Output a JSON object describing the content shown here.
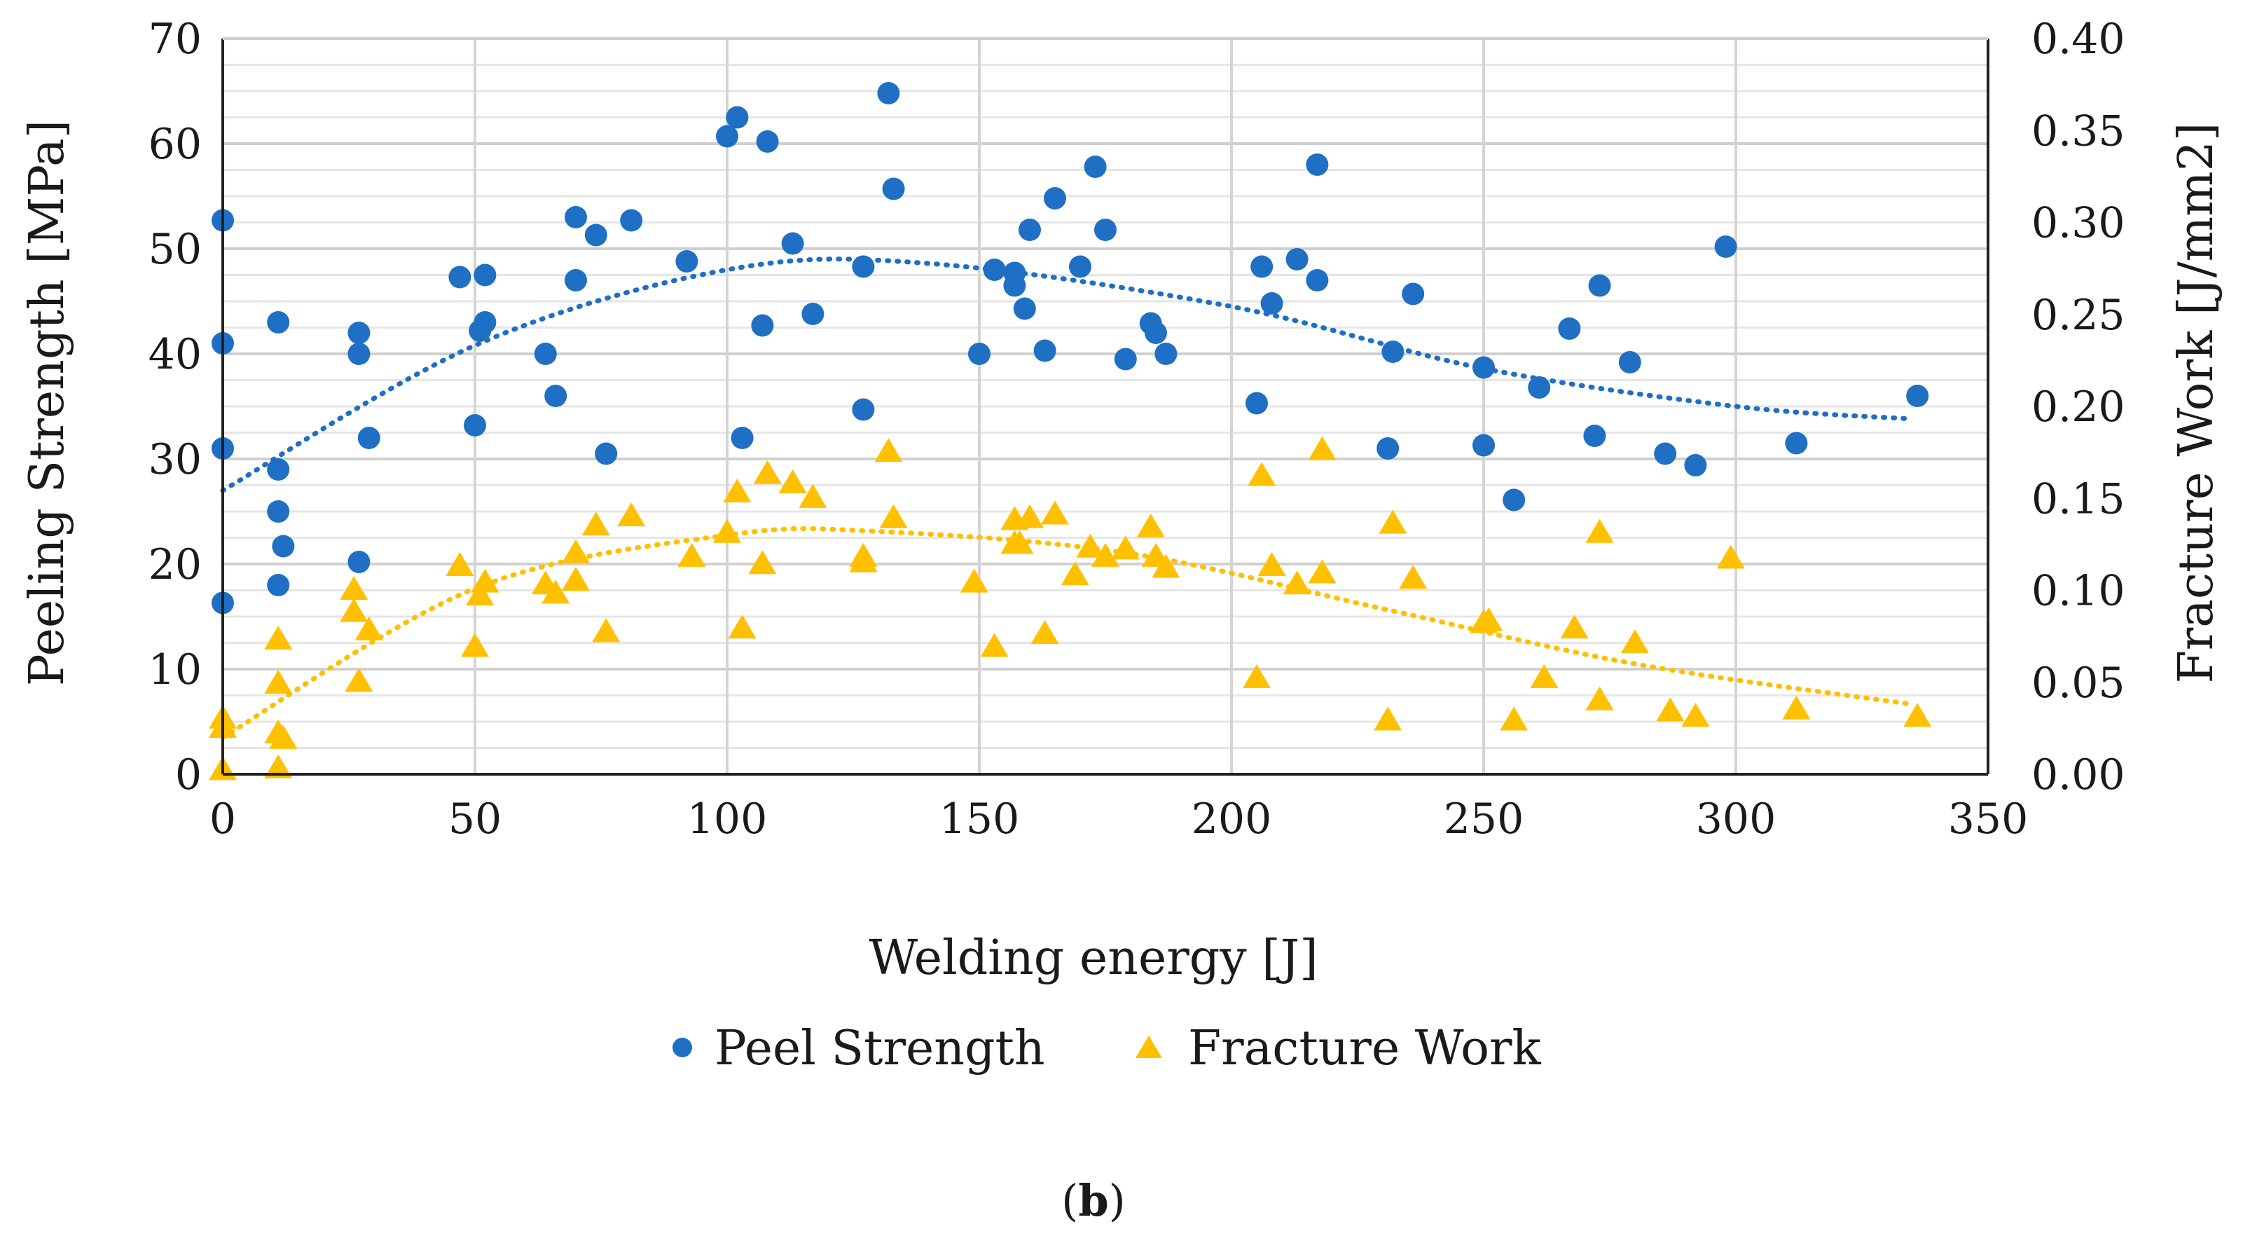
{
  "chart_data": {
    "type": "scatter",
    "xlabel": "Welding energy [J]",
    "ylabel": "Peeling Strength [MPa]",
    "y2label": "Fracture Work [J/mm2]",
    "xlim": [
      0,
      350
    ],
    "ylim": [
      0,
      70
    ],
    "y2lim": [
      0,
      0.4
    ],
    "x_ticks": [
      "0",
      "50",
      "100",
      "150",
      "200",
      "250",
      "300",
      "350"
    ],
    "y_ticks": [
      "0",
      "10",
      "20",
      "30",
      "40",
      "50",
      "60",
      "70"
    ],
    "y2_ticks": [
      "0.00",
      "0.05",
      "0.10",
      "0.15",
      "0.20",
      "0.25",
      "0.30",
      "0.35",
      "0.40"
    ],
    "grid": true,
    "legend_position": "bottom",
    "caption_prefix": "(",
    "caption_bold": "b",
    "caption_suffix": ")",
    "series": [
      {
        "name": "Peel Strength",
        "axis": "left",
        "marker": "circle",
        "color": "#1f6fc5",
        "points": [
          [
            0,
            52.7
          ],
          [
            0,
            41
          ],
          [
            0,
            31
          ],
          [
            0,
            16.3
          ],
          [
            11,
            43
          ],
          [
            11,
            29
          ],
          [
            11,
            25
          ],
          [
            11,
            18
          ],
          [
            12,
            21.7
          ],
          [
            27,
            42
          ],
          [
            27,
            40
          ],
          [
            27,
            20.2
          ],
          [
            29,
            32
          ],
          [
            47,
            47.3
          ],
          [
            50,
            33.2
          ],
          [
            51,
            42.2
          ],
          [
            52,
            47.5
          ],
          [
            52,
            43
          ],
          [
            64,
            40
          ],
          [
            66,
            36
          ],
          [
            70,
            53
          ],
          [
            70,
            47
          ],
          [
            74,
            51.3
          ],
          [
            76,
            30.5
          ],
          [
            81,
            52.7
          ],
          [
            92,
            48.8
          ],
          [
            100,
            60.7
          ],
          [
            102,
            62.5
          ],
          [
            103,
            32
          ],
          [
            107,
            42.7
          ],
          [
            108,
            60.2
          ],
          [
            113,
            50.5
          ],
          [
            117,
            43.8
          ],
          [
            127,
            48.3
          ],
          [
            127,
            34.7
          ],
          [
            132,
            64.8
          ],
          [
            133,
            55.7
          ],
          [
            150,
            40
          ],
          [
            153,
            48
          ],
          [
            157,
            47.7
          ],
          [
            157,
            46.5
          ],
          [
            159,
            44.3
          ],
          [
            160,
            51.8
          ],
          [
            163,
            40.3
          ],
          [
            165,
            54.8
          ],
          [
            170,
            48.3
          ],
          [
            173,
            57.8
          ],
          [
            175,
            51.8
          ],
          [
            179,
            39.5
          ],
          [
            184,
            42.9
          ],
          [
            185,
            42
          ],
          [
            187,
            40
          ],
          [
            205,
            35.3
          ],
          [
            206,
            48.3
          ],
          [
            208,
            44.8
          ],
          [
            213,
            49
          ],
          [
            217,
            58
          ],
          [
            217,
            47
          ],
          [
            231,
            31
          ],
          [
            232,
            40.2
          ],
          [
            236,
            45.7
          ],
          [
            250,
            31.3
          ],
          [
            250,
            38.7
          ],
          [
            256,
            26.1
          ],
          [
            261,
            36.8
          ],
          [
            267,
            42.4
          ],
          [
            272,
            32.2
          ],
          [
            273,
            46.5
          ],
          [
            279,
            39.2
          ],
          [
            286,
            30.5
          ],
          [
            292,
            29.4
          ],
          [
            298,
            50.2
          ],
          [
            312,
            31.5
          ],
          [
            336,
            36
          ]
        ],
        "trend": [
          [
            0,
            27
          ],
          [
            50,
            40.8
          ],
          [
            100,
            48
          ],
          [
            140,
            48.6
          ],
          [
            200,
            44.5
          ],
          [
            250,
            38.6
          ],
          [
            300,
            35
          ],
          [
            335,
            33.8
          ]
        ]
      },
      {
        "name": "Fracture Work",
        "axis": "right",
        "marker": "triangle",
        "color": "#ffc000",
        "points": [
          [
            0,
            0.03
          ],
          [
            0,
            0.025
          ],
          [
            0,
            0.002
          ],
          [
            11,
            0.073
          ],
          [
            11,
            0.049
          ],
          [
            11,
            0.022
          ],
          [
            11,
            0.003
          ],
          [
            12,
            0.019
          ],
          [
            26,
            0.1
          ],
          [
            26,
            0.088
          ],
          [
            27,
            0.05
          ],
          [
            29,
            0.078
          ],
          [
            47,
            0.113
          ],
          [
            50,
            0.069
          ],
          [
            51,
            0.097
          ],
          [
            52,
            0.104
          ],
          [
            64,
            0.103
          ],
          [
            66,
            0.098
          ],
          [
            70,
            0.12
          ],
          [
            70,
            0.105
          ],
          [
            74,
            0.135
          ],
          [
            76,
            0.077
          ],
          [
            81,
            0.14
          ],
          [
            93,
            0.118
          ],
          [
            100,
            0.131
          ],
          [
            102,
            0.153
          ],
          [
            103,
            0.079
          ],
          [
            107,
            0.114
          ],
          [
            108,
            0.163
          ],
          [
            113,
            0.158
          ],
          [
            117,
            0.15
          ],
          [
            127,
            0.118
          ],
          [
            127,
            0.115
          ],
          [
            132,
            0.175
          ],
          [
            133,
            0.139
          ],
          [
            149,
            0.104
          ],
          [
            153,
            0.069
          ],
          [
            157,
            0.138
          ],
          [
            157,
            0.125
          ],
          [
            158,
            0.125
          ],
          [
            160,
            0.139
          ],
          [
            163,
            0.076
          ],
          [
            165,
            0.141
          ],
          [
            169,
            0.108
          ],
          [
            172,
            0.123
          ],
          [
            175,
            0.118
          ],
          [
            179,
            0.122
          ],
          [
            184,
            0.134
          ],
          [
            185,
            0.118
          ],
          [
            187,
            0.112
          ],
          [
            205,
            0.052
          ],
          [
            206,
            0.162
          ],
          [
            208,
            0.113
          ],
          [
            213,
            0.103
          ],
          [
            218,
            0.176
          ],
          [
            218,
            0.109
          ],
          [
            231,
            0.029
          ],
          [
            232,
            0.136
          ],
          [
            236,
            0.106
          ],
          [
            250,
            0.082
          ],
          [
            251,
            0.083
          ],
          [
            256,
            0.029
          ],
          [
            262,
            0.052
          ],
          [
            268,
            0.079
          ],
          [
            273,
            0.04
          ],
          [
            273,
            0.131
          ],
          [
            280,
            0.071
          ],
          [
            287,
            0.034
          ],
          [
            292,
            0.031
          ],
          [
            299,
            0.117
          ],
          [
            312,
            0.035
          ],
          [
            336,
            0.031
          ]
        ],
        "trend": [
          [
            0,
            0.02
          ],
          [
            50,
            0.101
          ],
          [
            100,
            0.13
          ],
          [
            130,
            0.132
          ],
          [
            180,
            0.12
          ],
          [
            230,
            0.09
          ],
          [
            280,
            0.06
          ],
          [
            335,
            0.038
          ]
        ]
      }
    ]
  }
}
